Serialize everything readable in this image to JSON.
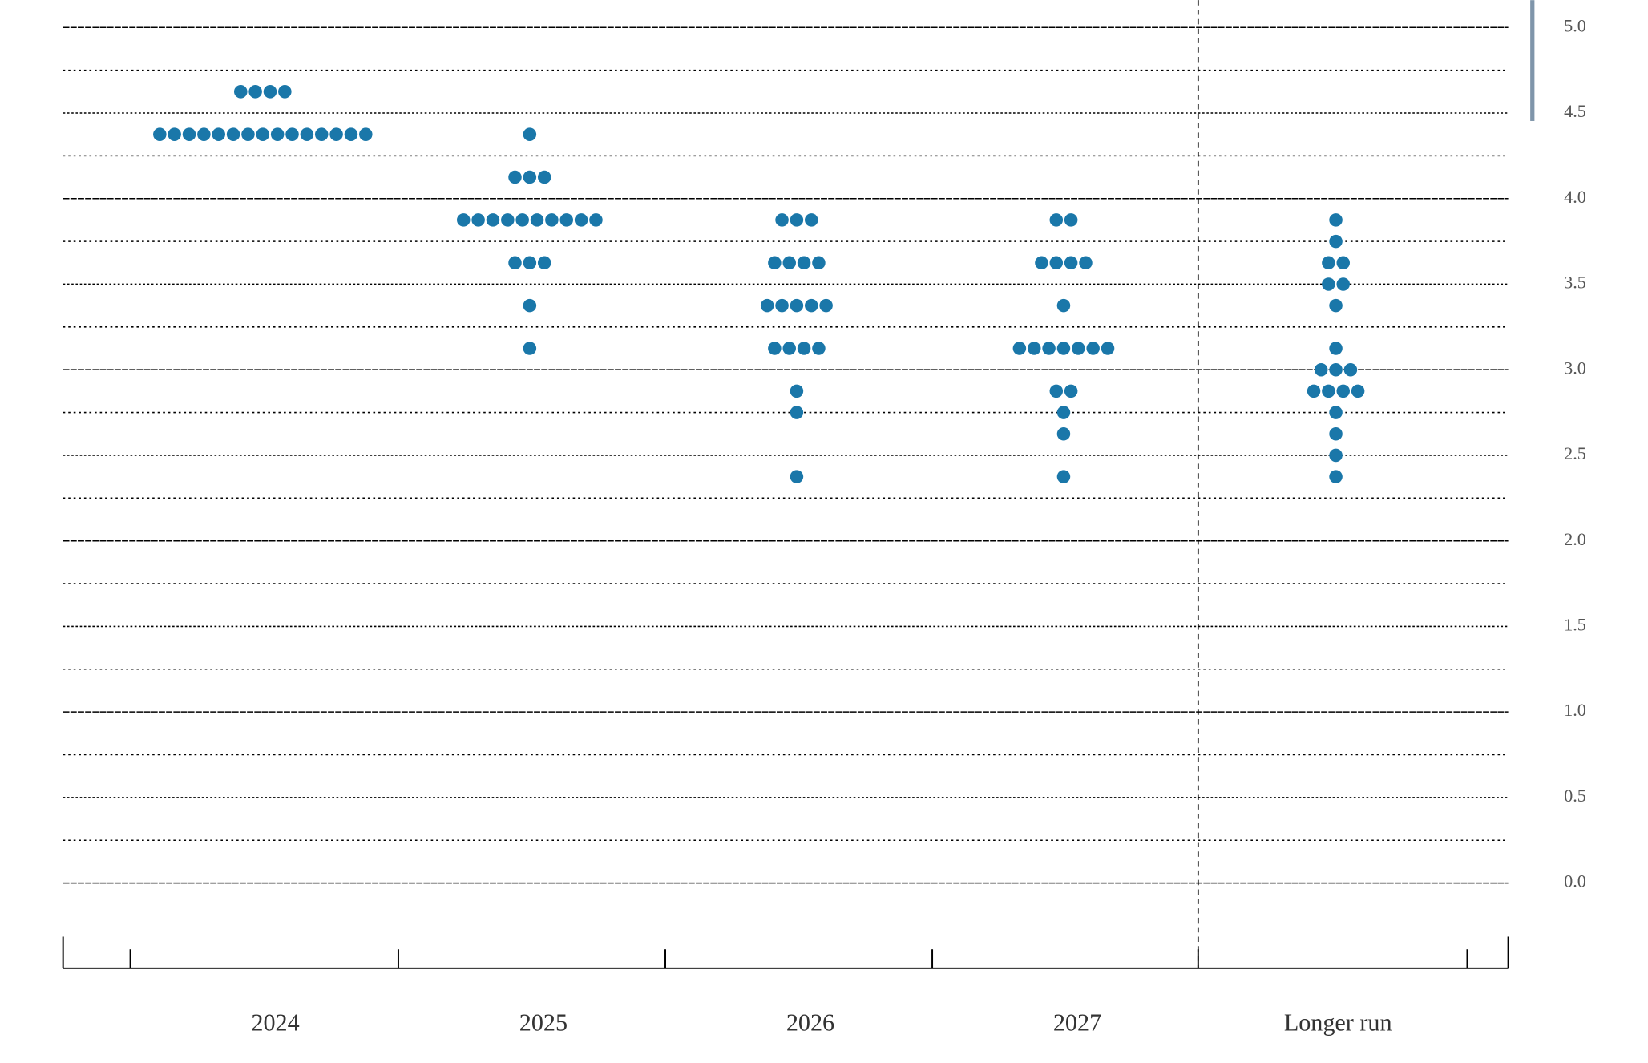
{
  "chart_data": {
    "type": "dot",
    "categories": [
      "2024",
      "2025",
      "2026",
      "2027",
      "Longer run"
    ],
    "values": [
      [
        {
          "rate": 4.625,
          "count": 4
        },
        {
          "rate": 4.375,
          "count": 15
        }
      ],
      [
        {
          "rate": 4.375,
          "count": 1
        },
        {
          "rate": 4.125,
          "count": 3
        },
        {
          "rate": 3.875,
          "count": 10
        },
        {
          "rate": 3.625,
          "count": 3
        },
        {
          "rate": 3.375,
          "count": 1
        },
        {
          "rate": 3.125,
          "count": 1
        }
      ],
      [
        {
          "rate": 3.875,
          "count": 3
        },
        {
          "rate": 3.625,
          "count": 4
        },
        {
          "rate": 3.375,
          "count": 5
        },
        {
          "rate": 3.125,
          "count": 4
        },
        {
          "rate": 2.875,
          "count": 1
        },
        {
          "rate": 2.75,
          "count": 1
        },
        {
          "rate": 2.375,
          "count": 1
        }
      ],
      [
        {
          "rate": 3.875,
          "count": 2
        },
        {
          "rate": 3.625,
          "count": 4
        },
        {
          "rate": 3.375,
          "count": 1
        },
        {
          "rate": 3.125,
          "count": 7
        },
        {
          "rate": 2.875,
          "count": 2
        },
        {
          "rate": 2.75,
          "count": 1
        },
        {
          "rate": 2.625,
          "count": 1
        },
        {
          "rate": 2.375,
          "count": 1
        }
      ],
      [
        {
          "rate": 3.875,
          "count": 1
        },
        {
          "rate": 3.75,
          "count": 1
        },
        {
          "rate": 3.625,
          "count": 2
        },
        {
          "rate": 3.5,
          "count": 2
        },
        {
          "rate": 3.375,
          "count": 1
        },
        {
          "rate": 3.125,
          "count": 1
        },
        {
          "rate": 3.0,
          "count": 3
        },
        {
          "rate": 2.875,
          "count": 4
        },
        {
          "rate": 2.75,
          "count": 1
        },
        {
          "rate": 2.625,
          "count": 1
        },
        {
          "rate": 2.5,
          "count": 1
        },
        {
          "rate": 2.375,
          "count": 1
        }
      ]
    ],
    "color": "#1a77a9",
    "ylim": [
      0,
      5
    ],
    "yticks": [
      {
        "value": 0,
        "label": "0.0"
      },
      {
        "value": 0.5,
        "label": "0.5"
      },
      {
        "value": 1,
        "label": "1.0"
      },
      {
        "value": 1.5,
        "label": "1.5"
      },
      {
        "value": 2,
        "label": "2.0"
      },
      {
        "value": 2.5,
        "label": "2.5"
      },
      {
        "value": 3,
        "label": "3.0"
      },
      {
        "value": 3.5,
        "label": "3.5"
      },
      {
        "value": 4,
        "label": "4.0"
      },
      {
        "value": 4.5,
        "label": "4.5"
      },
      {
        "value": 5,
        "label": "5.0"
      }
    ],
    "minor_yticks": [
      0.25,
      0.75,
      1.25,
      1.75,
      2.25,
      2.75,
      3.25,
      3.75,
      4.25,
      4.75
    ],
    "grid": true
  }
}
